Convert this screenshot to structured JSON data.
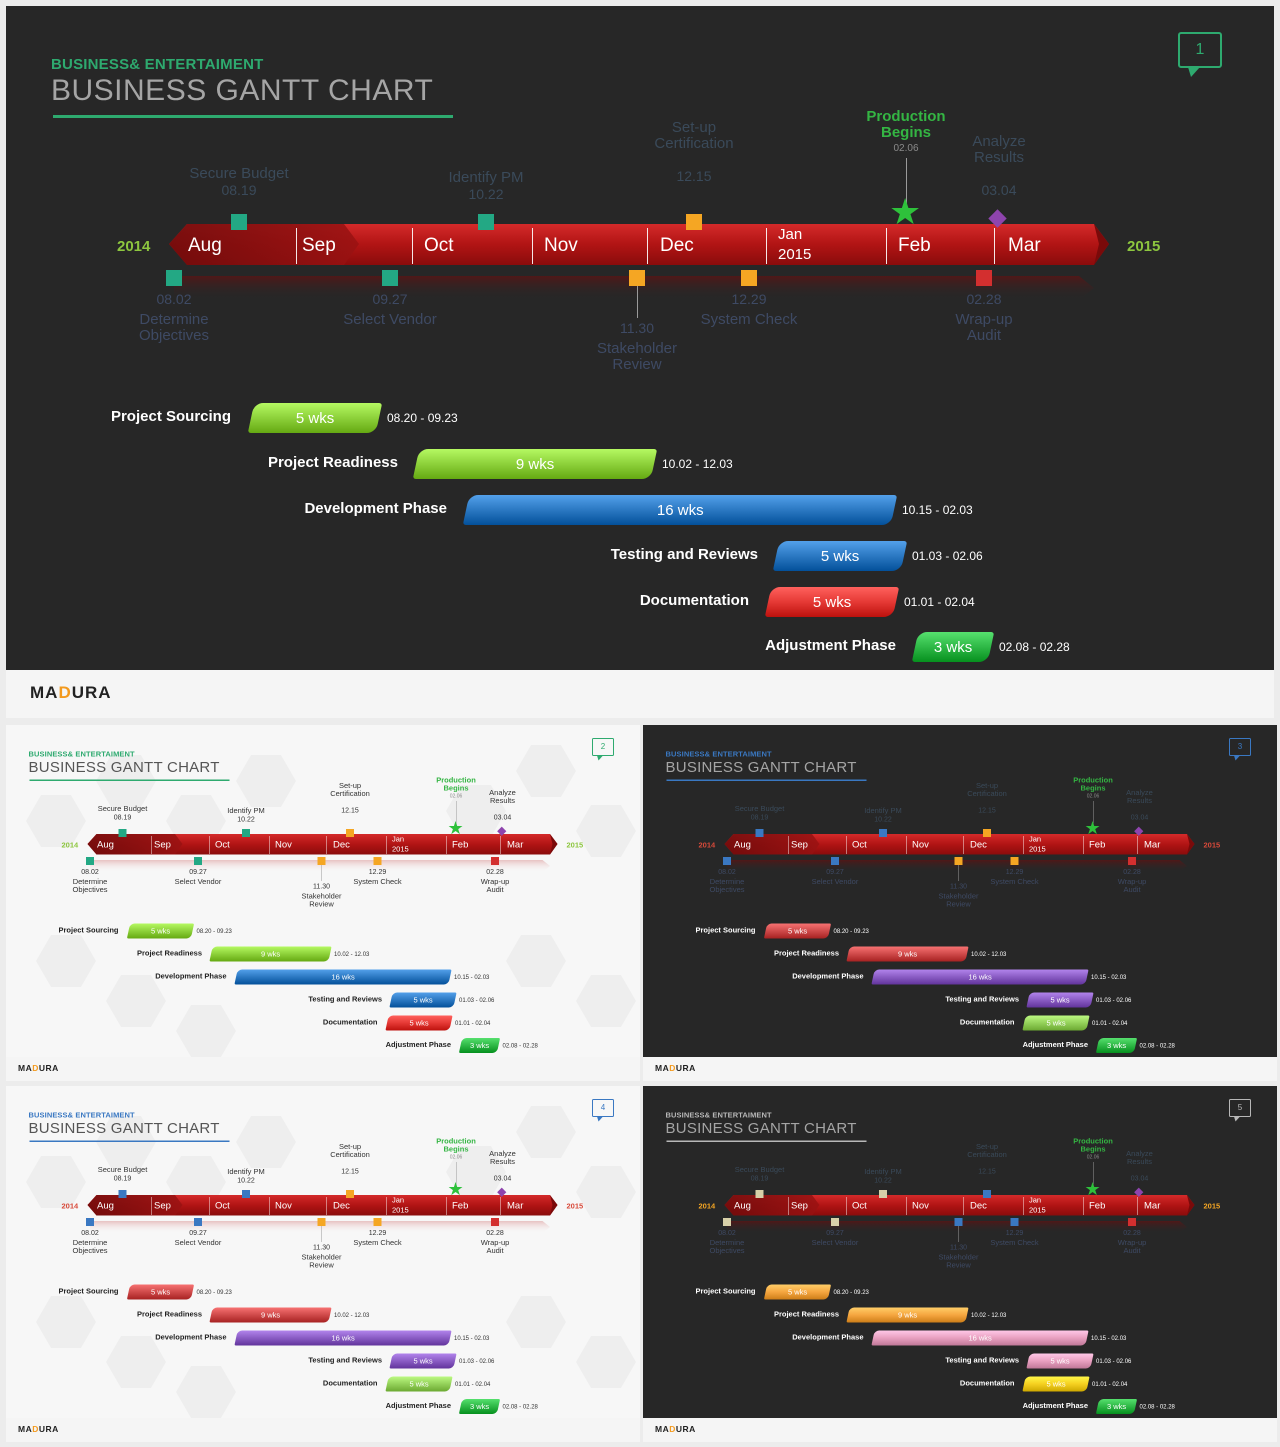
{
  "subtitle": "BUSINESS& ENTERTAIMENT",
  "title": "BUSINESS GANTT CHART",
  "brand": {
    "pre": "MA",
    "accent": "D",
    "post": "URA",
    "accent_color": "#f39a1e"
  },
  "years": {
    "start": "2014",
    "end": "2015"
  },
  "months": [
    {
      "label": "Aug"
    },
    {
      "label": "Sep"
    },
    {
      "label": "Oct"
    },
    {
      "label": "Nov"
    },
    {
      "label": "Dec"
    },
    {
      "label": "Jan",
      "label2": "2015"
    },
    {
      "label": "Feb"
    },
    {
      "label": "Mar"
    }
  ],
  "milestones_top": [
    {
      "date": "08.19",
      "label": "Secure Budget"
    },
    {
      "date": "10.22",
      "label": "Identify PM"
    },
    {
      "date": "12.15",
      "label": "Set-up",
      "label2": "Certification"
    },
    {
      "date": "03.04",
      "label": "Analyze",
      "label2": "Results"
    }
  ],
  "milestones_bottom": [
    {
      "date": "08.02",
      "label": "Determine",
      "label2": "Objectives"
    },
    {
      "date": "09.27",
      "label": "Select Vendor"
    },
    {
      "date": "11.30",
      "label": "Stakeholder",
      "label2": "Review"
    },
    {
      "date": "12.29",
      "label": "System Check"
    },
    {
      "date": "02.28",
      "label": "Wrap-up",
      "label2": "Audit"
    }
  ],
  "production": {
    "label": "Production",
    "label2": "Begins",
    "date": "02.06"
  },
  "tasks": [
    {
      "name": "Project Sourcing",
      "duration": "5 wks",
      "range": "08.20 - 09.23"
    },
    {
      "name": "Project Readiness",
      "duration": "9 wks",
      "range": "10.02 - 12.03"
    },
    {
      "name": "Development Phase",
      "duration": "16 wks",
      "range": "10.15 - 02.03"
    },
    {
      "name": "Testing and Reviews",
      "duration": "5 wks",
      "range": "01.03 - 02.06"
    },
    {
      "name": "Documentation",
      "duration": "5 wks",
      "range": "01.01 - 02.04"
    },
    {
      "name": "Adjustment Phase",
      "duration": "3 wks",
      "range": "02.08 - 02.28"
    }
  ],
  "slides": [
    {
      "number": "1",
      "theme": "dark",
      "accent": "#2eaa6f",
      "badge": "#2eaa6f",
      "year_color": "#8dc63f",
      "top_label_color": "#3a4a5a",
      "bottom_label_color": "#3e4a64",
      "top_markers": [
        "#23a884",
        "#23a884",
        "#f5a623",
        "#8e44ad"
      ],
      "bottom_markers": [
        "#23a884",
        "#23a884",
        "#f5a623",
        "#f5a623",
        "#d32f2f"
      ],
      "bars": [
        "#8dd13a",
        "#8dd13a",
        "#2b78c2",
        "#2b78c2",
        "#e53935",
        "#2eb846"
      ]
    },
    {
      "number": "2",
      "theme": "light",
      "accent": "#2eaa6f",
      "badge": "#2eaa6f",
      "year_color": "#8dc63f",
      "top_label_color": "#333333",
      "bottom_label_color": "#333333",
      "top_markers": [
        "#23a884",
        "#23a884",
        "#f5a623",
        "#8e44ad"
      ],
      "bottom_markers": [
        "#23a884",
        "#23a884",
        "#f5a623",
        "#f5a623",
        "#d32f2f"
      ],
      "bars": [
        "#8dd13a",
        "#8dd13a",
        "#2b78c2",
        "#2b78c2",
        "#e53935",
        "#2eb846"
      ]
    },
    {
      "number": "3",
      "theme": "dark",
      "accent": "#3a78c2",
      "badge": "#3a78c2",
      "year_color": "#d84a3a",
      "top_label_color": "#3a4a5a",
      "bottom_label_color": "#3e4a64",
      "top_markers": [
        "#3a78c2",
        "#3a78c2",
        "#f5a623",
        "#8e44ad"
      ],
      "bottom_markers": [
        "#3a78c2",
        "#3a78c2",
        "#f5a623",
        "#f5a623",
        "#d32f2f"
      ],
      "bars": [
        "#cf4a4a",
        "#cf4a4a",
        "#8a5cc4",
        "#8a5cc4",
        "#94d15a",
        "#2eb846"
      ]
    },
    {
      "number": "4",
      "theme": "light",
      "accent": "#3a78c2",
      "badge": "#3a78c2",
      "year_color": "#d84a3a",
      "top_label_color": "#333333",
      "bottom_label_color": "#333333",
      "top_markers": [
        "#3a78c2",
        "#3a78c2",
        "#f5a623",
        "#8e44ad"
      ],
      "bottom_markers": [
        "#3a78c2",
        "#3a78c2",
        "#f5a623",
        "#f5a623",
        "#d32f2f"
      ],
      "bars": [
        "#cf4a4a",
        "#cf4a4a",
        "#8a5cc4",
        "#8a5cc4",
        "#94d15a",
        "#2eb846"
      ]
    },
    {
      "number": "5",
      "theme": "dark",
      "accent": "#b8b8b8",
      "badge": "#b8b8b8",
      "year_color": "#f5a623",
      "top_label_color": "#3a4a5a",
      "bottom_label_color": "#3e4a64",
      "top_markers": [
        "#d8d0a8",
        "#d8d0a8",
        "#3a78c2",
        "#8e44ad"
      ],
      "bottom_markers": [
        "#d8d0a8",
        "#d8d0a8",
        "#3a78c2",
        "#3a78c2",
        "#d32f2f"
      ],
      "bars": [
        "#f5a640",
        "#f5a640",
        "#e8a0c0",
        "#e8a0c0",
        "#f5d020",
        "#2eb846"
      ]
    }
  ]
}
